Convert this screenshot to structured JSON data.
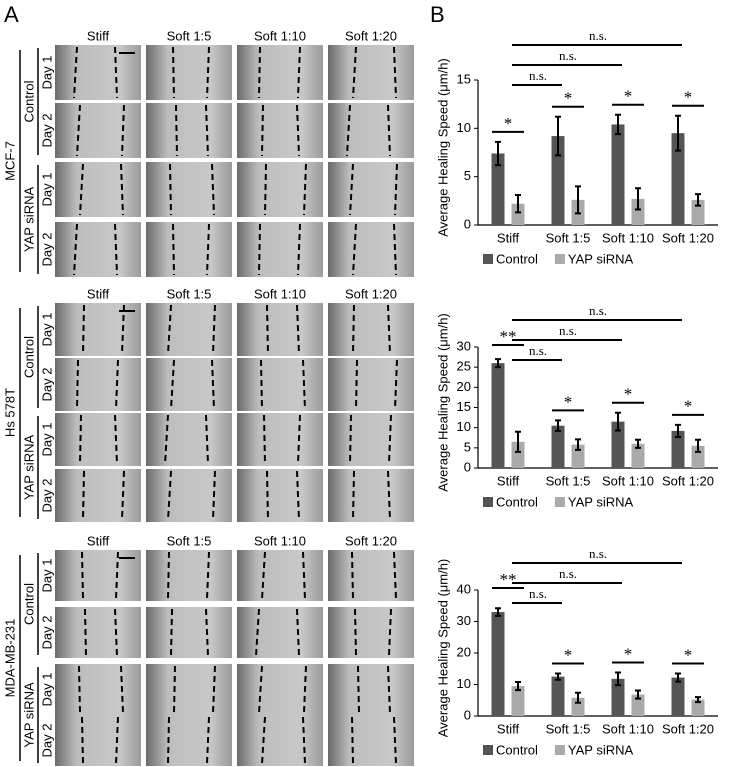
{
  "panel_labels": [
    "A",
    "B"
  ],
  "blocks": [
    {
      "cell_line": "MCF-7",
      "columns": [
        "Stiff",
        "Soft 1:5",
        "Soft 1:10",
        "Soft 1:20"
      ],
      "groups": [
        "Control",
        "YAP siRNA"
      ],
      "days": [
        "Day 1",
        "Day 2",
        "Day 1",
        "Day 2"
      ]
    },
    {
      "cell_line": "Hs 578T",
      "columns": [
        "Stiff",
        "Soft 1:5",
        "Soft 1:10",
        "Soft 1:20"
      ],
      "groups": [
        "Control",
        "YAP siRNA"
      ],
      "days": [
        "Day 1",
        "Day 2",
        "Day 1",
        "Day 2"
      ]
    },
    {
      "cell_line": "MDA-MB-231",
      "columns": [
        "Stiff",
        "Soft 1:5",
        "Soft 1:10",
        "Soft 1:20"
      ],
      "groups": [
        "Control",
        "YAP siRNA"
      ],
      "days": [
        "Day 1",
        "Day 2",
        "Day 1",
        "Day 2"
      ]
    }
  ],
  "chart_data": [
    {
      "type": "bar",
      "ylabel": "Average Healing Speed (μm/h)",
      "categories": [
        "Stiff",
        "Soft 1:5",
        "Soft 1:10",
        "Soft 1:20"
      ],
      "series": [
        {
          "name": "Control",
          "color": "#555555",
          "values": [
            7.4,
            9.2,
            10.4,
            9.5
          ],
          "errors": [
            1.2,
            2.0,
            1.0,
            1.8
          ]
        },
        {
          "name": "YAP siRNA",
          "color": "#aaaaaa",
          "values": [
            2.2,
            2.6,
            2.7,
            2.6
          ],
          "errors": [
            0.9,
            1.4,
            1.1,
            0.6
          ]
        }
      ],
      "ylim": [
        0,
        15
      ],
      "yticks": [
        0,
        5,
        10,
        15
      ],
      "annotations": [
        "*",
        "*",
        "*",
        "*",
        "n.s.",
        "n.s.",
        "n.s."
      ]
    },
    {
      "type": "bar",
      "ylabel": "Average Healing Speed (μm/h)",
      "categories": [
        "Stiff",
        "Soft 1:5",
        "Soft 1:10",
        "Soft 1:20"
      ],
      "series": [
        {
          "name": "Control",
          "color": "#555555",
          "values": [
            26,
            10.5,
            11.5,
            9.2
          ],
          "errors": [
            1.0,
            1.3,
            2.2,
            1.5
          ]
        },
        {
          "name": "YAP siRNA",
          "color": "#aaaaaa",
          "values": [
            6.5,
            5.8,
            6,
            5.5
          ],
          "errors": [
            2.5,
            1.3,
            1.0,
            1.5
          ]
        }
      ],
      "ylim": [
        0,
        30
      ],
      "yticks": [
        0,
        5,
        10,
        15,
        20,
        25,
        30
      ],
      "annotations": [
        "**",
        "*",
        "*",
        "*",
        "n.s.",
        "n.s.",
        "n.s."
      ]
    },
    {
      "type": "bar",
      "ylabel": "Average Healing Speed (μm/h)",
      "categories": [
        "Stiff",
        "Soft 1:5",
        "Soft 1:10",
        "Soft 1:20"
      ],
      "series": [
        {
          "name": "Control",
          "color": "#555555",
          "values": [
            33,
            12.5,
            11.8,
            12.2
          ],
          "errors": [
            1.2,
            1.0,
            2.0,
            1.3
          ]
        },
        {
          "name": "YAP siRNA",
          "color": "#aaaaaa",
          "values": [
            9.5,
            5.8,
            6.8,
            5.2
          ],
          "errors": [
            1.3,
            1.6,
            1.3,
            0.8
          ]
        }
      ],
      "ylim": [
        0,
        40
      ],
      "yticks": [
        0,
        10,
        20,
        30,
        40
      ],
      "annotations": [
        "**",
        "*",
        "*",
        "*",
        "n.s.",
        "n.s.",
        "n.s."
      ]
    }
  ]
}
